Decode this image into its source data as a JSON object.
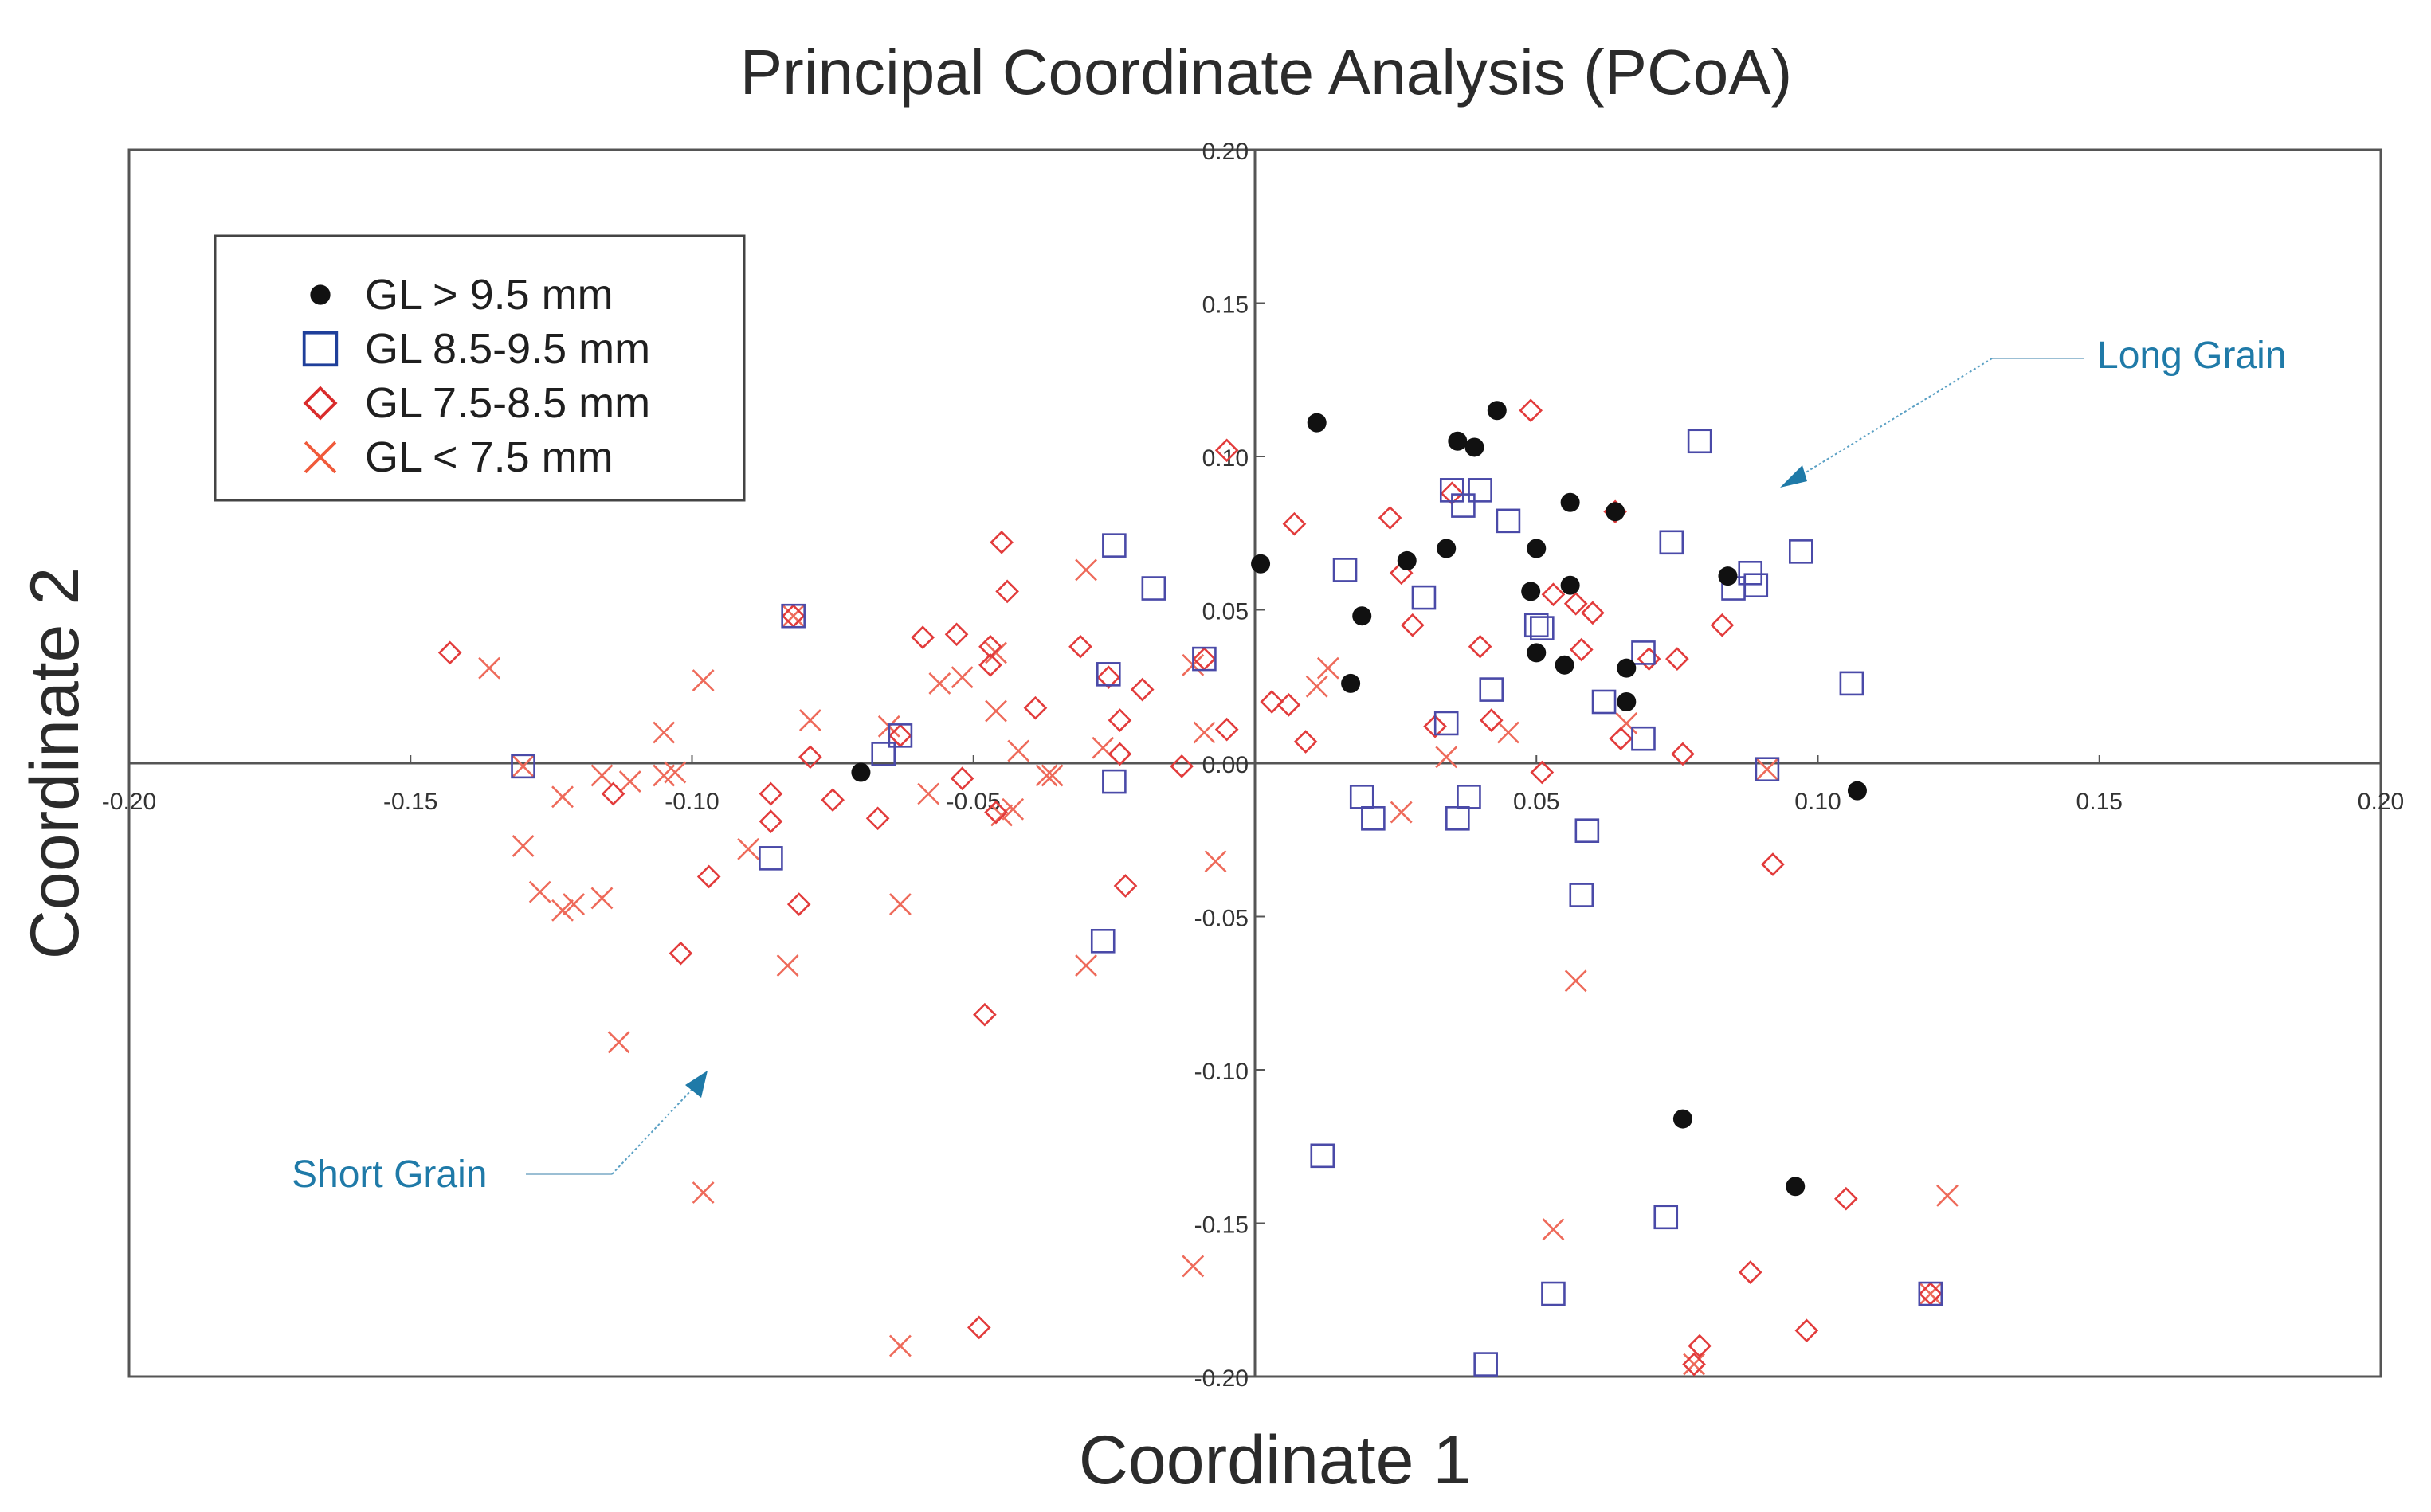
{
  "chart_data": {
    "type": "scatter",
    "title": "Principal Coordinate Analysis (PCoA)",
    "xlabel": "Coordinate 1",
    "ylabel": "Coordinate 2",
    "xlim": [
      -0.2,
      0.2
    ],
    "ylim": [
      -0.2,
      0.2
    ],
    "xticks": [
      -0.2,
      -0.15,
      -0.1,
      -0.05,
      0.05,
      0.1,
      0.15,
      0.2
    ],
    "xtick_labels": [
      "-0.20",
      "-0.15",
      "-0.10",
      "-0.05",
      "0.05",
      "0.10",
      "0.15",
      "0.20"
    ],
    "yticks": [
      0.2,
      0.15,
      0.1,
      0.05,
      0.0,
      -0.05,
      -0.1,
      -0.15,
      -0.2
    ],
    "ytick_labels": [
      "0.20",
      "0.15",
      "0.10",
      "0.05",
      "0.00",
      "-0.05",
      "-0.10",
      "-0.15",
      "-0.20"
    ],
    "legend_position": "top-left",
    "series": [
      {
        "name": "GL > 9.5 mm",
        "marker": "filled-circle",
        "color": "#111111",
        "points": [
          [
            0.011,
            0.111
          ],
          [
            0.036,
            0.105
          ],
          [
            0.039,
            0.103
          ],
          [
            0.043,
            0.115
          ],
          [
            0.001,
            0.065
          ],
          [
            0.027,
            0.066
          ],
          [
            0.034,
            0.07
          ],
          [
            0.05,
            0.07
          ],
          [
            0.056,
            0.085
          ],
          [
            0.019,
            0.048
          ],
          [
            0.049,
            0.056
          ],
          [
            0.056,
            0.058
          ],
          [
            0.017,
            0.026
          ],
          [
            0.05,
            0.036
          ],
          [
            0.055,
            0.032
          ],
          [
            0.066,
            0.031
          ],
          [
            0.066,
            0.02
          ],
          [
            0.064,
            0.082
          ],
          [
            0.084,
            0.061
          ],
          [
            0.107,
            -0.009
          ],
          [
            -0.07,
            -0.003
          ],
          [
            0.076,
            -0.116
          ],
          [
            0.096,
            -0.138
          ]
        ]
      },
      {
        "name": "GL 8.5-9.5 mm",
        "marker": "open-square",
        "color": "#4a4aa8",
        "points": [
          [
            0.079,
            0.105
          ],
          [
            0.035,
            0.089
          ],
          [
            0.037,
            0.084
          ],
          [
            0.04,
            0.089
          ],
          [
            0.045,
            0.079
          ],
          [
            0.016,
            0.063
          ],
          [
            0.03,
            0.054
          ],
          [
            0.05,
            0.045
          ],
          [
            0.051,
            0.044
          ],
          [
            0.074,
            0.072
          ],
          [
            0.085,
            0.057
          ],
          [
            0.088,
            0.062
          ],
          [
            0.089,
            0.058
          ],
          [
            0.097,
            0.069
          ],
          [
            0.106,
            0.026
          ],
          [
            -0.025,
            0.071
          ],
          [
            -0.018,
            0.057
          ],
          [
            -0.082,
            0.048
          ],
          [
            -0.026,
            0.029
          ],
          [
            -0.009,
            0.034
          ],
          [
            0.069,
            0.036
          ],
          [
            0.069,
            0.008
          ],
          [
            0.062,
            0.02
          ],
          [
            0.034,
            0.013
          ],
          [
            -0.063,
            0.009
          ],
          [
            -0.066,
            0.003
          ],
          [
            -0.13,
            -0.001
          ],
          [
            -0.025,
            -0.006
          ],
          [
            0.091,
            -0.002
          ],
          [
            0.019,
            -0.011
          ],
          [
            0.021,
            -0.018
          ],
          [
            0.036,
            -0.018
          ],
          [
            0.038,
            -0.011
          ],
          [
            0.059,
            -0.022
          ],
          [
            0.058,
            -0.043
          ],
          [
            -0.086,
            -0.031
          ],
          [
            -0.027,
            -0.058
          ],
          [
            0.012,
            -0.128
          ],
          [
            0.073,
            -0.148
          ],
          [
            0.053,
            -0.173
          ],
          [
            0.12,
            -0.173
          ],
          [
            0.041,
            -0.196
          ],
          [
            0.042,
            0.024
          ]
        ]
      },
      {
        "name": "GL 7.5-8.5 mm",
        "marker": "open-diamond",
        "color": "#e23b3b",
        "points": [
          [
            0.049,
            0.115
          ],
          [
            -0.005,
            0.102
          ],
          [
            0.007,
            0.078
          ],
          [
            0.024,
            0.08
          ],
          [
            0.035,
            0.088
          ],
          [
            0.064,
            0.082
          ],
          [
            -0.045,
            0.072
          ],
          [
            -0.044,
            0.056
          ],
          [
            -0.031,
            0.038
          ],
          [
            -0.053,
            0.042
          ],
          [
            -0.059,
            0.041
          ],
          [
            -0.047,
            0.038
          ],
          [
            -0.047,
            0.032
          ],
          [
            -0.02,
            0.024
          ],
          [
            -0.039,
            0.018
          ],
          [
            -0.026,
            0.028
          ],
          [
            -0.024,
            0.014
          ],
          [
            -0.005,
            0.011
          ],
          [
            0.009,
            0.007
          ],
          [
            0.003,
            0.02
          ],
          [
            0.006,
            0.019
          ],
          [
            0.026,
            0.062
          ],
          [
            0.028,
            0.045
          ],
          [
            0.032,
            0.012
          ],
          [
            0.04,
            0.038
          ],
          [
            0.042,
            0.014
          ],
          [
            0.053,
            0.055
          ],
          [
            0.057,
            0.052
          ],
          [
            0.058,
            0.037
          ],
          [
            0.06,
            0.049
          ],
          [
            0.07,
            0.034
          ],
          [
            0.075,
            0.034
          ],
          [
            0.076,
            0.003
          ],
          [
            0.083,
            0.045
          ],
          [
            0.051,
            -0.003
          ],
          [
            0.092,
            -0.033
          ],
          [
            -0.143,
            0.036
          ],
          [
            -0.114,
            -0.01
          ],
          [
            -0.086,
            -0.01
          ],
          [
            -0.086,
            -0.019
          ],
          [
            -0.079,
            0.002
          ],
          [
            -0.075,
            -0.012
          ],
          [
            -0.067,
            -0.018
          ],
          [
            -0.063,
            0.009
          ],
          [
            -0.052,
            -0.005
          ],
          [
            -0.046,
            -0.016
          ],
          [
            -0.024,
            0.003
          ],
          [
            -0.013,
            -0.001
          ],
          [
            -0.102,
            -0.062
          ],
          [
            -0.097,
            -0.037
          ],
          [
            -0.081,
            -0.046
          ],
          [
            -0.048,
            -0.082
          ],
          [
            -0.049,
            -0.184
          ],
          [
            -0.023,
            -0.04
          ],
          [
            0.105,
            -0.142
          ],
          [
            0.088,
            -0.166
          ],
          [
            0.098,
            -0.185
          ],
          [
            0.079,
            -0.19
          ],
          [
            0.078,
            -0.196
          ],
          [
            0.12,
            -0.173
          ],
          [
            -0.082,
            0.048
          ],
          [
            -0.009,
            0.034
          ],
          [
            0.065,
            0.008
          ]
        ]
      },
      {
        "name": "GL < 7.5 mm",
        "marker": "cross",
        "color": "#ee6a5a",
        "points": [
          [
            -0.03,
            0.063
          ],
          [
            -0.011,
            0.032
          ],
          [
            -0.052,
            0.028
          ],
          [
            -0.046,
            0.036
          ],
          [
            -0.046,
            0.017
          ],
          [
            -0.042,
            0.004
          ],
          [
            -0.036,
            -0.004
          ],
          [
            -0.027,
            0.005
          ],
          [
            -0.009,
            0.01
          ],
          [
            0.013,
            0.031
          ],
          [
            0.011,
            0.025
          ],
          [
            0.034,
            0.002
          ],
          [
            0.045,
            0.01
          ],
          [
            0.066,
            0.013
          ],
          [
            -0.098,
            0.027
          ],
          [
            -0.136,
            0.031
          ],
          [
            -0.105,
            0.01
          ],
          [
            -0.079,
            0.014
          ],
          [
            -0.065,
            0.012
          ],
          [
            -0.056,
            0.026
          ],
          [
            -0.123,
            -0.011
          ],
          [
            -0.116,
            -0.004
          ],
          [
            -0.111,
            -0.006
          ],
          [
            -0.105,
            -0.004
          ],
          [
            -0.103,
            -0.003
          ],
          [
            -0.09,
            -0.028
          ],
          [
            -0.058,
            -0.01
          ],
          [
            -0.045,
            -0.017
          ],
          [
            -0.043,
            -0.015
          ],
          [
            -0.037,
            -0.004
          ],
          [
            -0.007,
            -0.032
          ],
          [
            0.026,
            -0.016
          ],
          [
            -0.127,
            -0.042
          ],
          [
            -0.123,
            -0.048
          ],
          [
            -0.121,
            -0.046
          ],
          [
            -0.116,
            -0.044
          ],
          [
            -0.13,
            -0.027
          ],
          [
            -0.083,
            -0.066
          ],
          [
            -0.063,
            -0.046
          ],
          [
            -0.03,
            -0.066
          ],
          [
            -0.113,
            -0.091
          ],
          [
            -0.098,
            -0.14
          ],
          [
            -0.063,
            -0.19
          ],
          [
            -0.011,
            -0.164
          ],
          [
            0.053,
            -0.152
          ],
          [
            0.057,
            -0.071
          ],
          [
            0.123,
            -0.141
          ],
          [
            0.078,
            -0.196
          ],
          [
            0.12,
            -0.173
          ],
          [
            -0.13,
            -0.001
          ],
          [
            -0.082,
            0.048
          ],
          [
            0.091,
            -0.002
          ]
        ]
      }
    ],
    "annotations": [
      {
        "text": "Long Grain",
        "color": "#1f7aa8"
      },
      {
        "text": "Short Grain",
        "color": "#1f7aa8"
      }
    ]
  }
}
